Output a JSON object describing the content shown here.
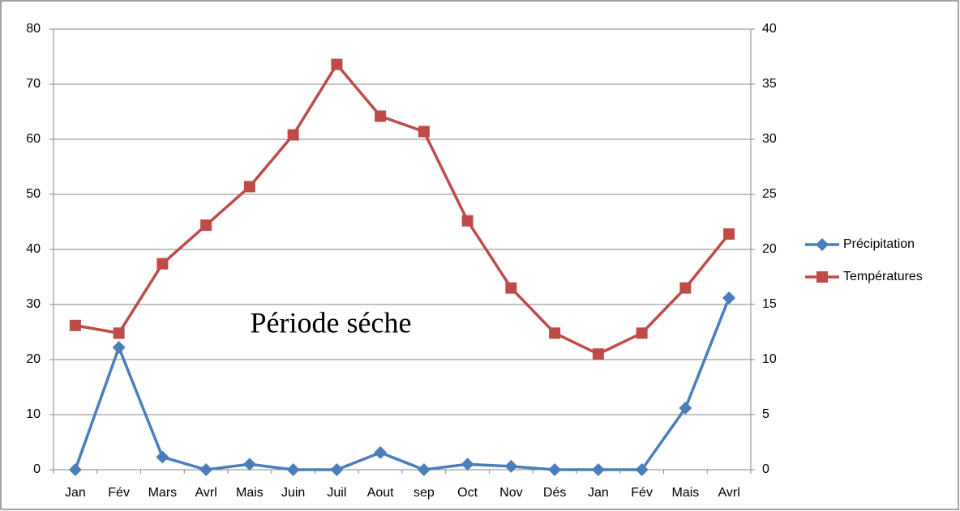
{
  "chart_data": {
    "type": "line",
    "categories": [
      "Jan",
      "Fév",
      "Mars",
      "Avrl",
      "Mais",
      "Juin",
      "Juil",
      "Aout",
      "sep",
      "Oct",
      "Nov",
      "Dés",
      "Jan",
      "Fév",
      "Mais",
      "Avrl"
    ],
    "series": [
      {
        "name": "Précipitation",
        "color": "#4a7ebb",
        "marker": "diamond",
        "axis": "y",
        "values": [
          0,
          22.2,
          2.3,
          0,
          1,
          0,
          0,
          3.1,
          0,
          1,
          0.6,
          0,
          0,
          0,
          11.2,
          31.2
        ]
      },
      {
        "name": "Températures",
        "color": "#be4b48",
        "marker": "square",
        "axis": "y2",
        "values": [
          13.1,
          12.4,
          18.7,
          22.2,
          25.7,
          30.4,
          36.8,
          32.1,
          30.7,
          22.6,
          16.5,
          12.4,
          10.5,
          12.4,
          16.5,
          21.4
        ]
      }
    ],
    "ylim": [
      0,
      80
    ],
    "yticks": [
      0,
      10,
      20,
      30,
      40,
      50,
      60,
      70,
      80
    ],
    "y2lim": [
      0,
      40
    ],
    "y2ticks": [
      0,
      5,
      10,
      15,
      20,
      25,
      30,
      35,
      40
    ],
    "grid": true,
    "legend": "right",
    "annotation": "Période séche"
  }
}
